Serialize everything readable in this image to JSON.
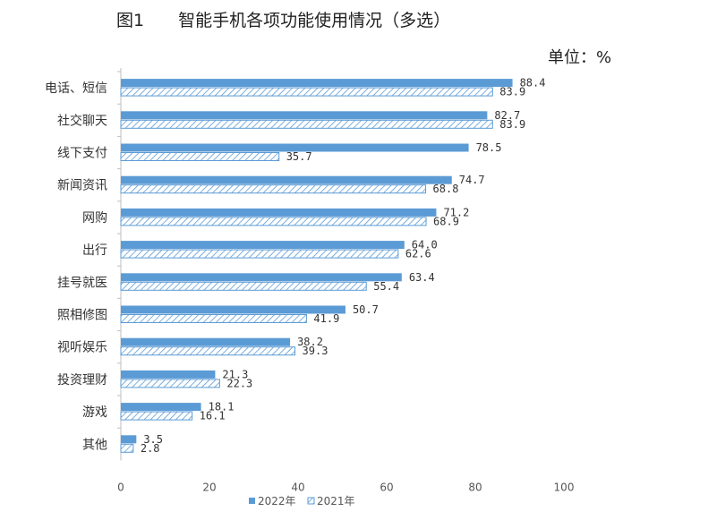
{
  "header": {
    "title": "图1　　智能手机各项功能使用情况（多选）",
    "unit": "单位：%"
  },
  "chart_data": {
    "type": "bar",
    "orientation": "horizontal",
    "title": "图1　　智能手机各项功能使用情况（多选）",
    "unit": "单位：%",
    "categories": [
      "电话、短信",
      "社交聊天",
      "线下支付",
      "新闻资讯",
      "网购",
      "出行",
      "挂号就医",
      "照相修图",
      "视听娱乐",
      "投资理财",
      "游戏",
      "其他"
    ],
    "series": [
      {
        "name": "2022年",
        "color": "#5b9bd5",
        "pattern": "solid",
        "values": [
          88.4,
          82.7,
          78.5,
          74.7,
          71.2,
          64.0,
          63.4,
          50.7,
          38.2,
          21.3,
          18.1,
          3.5
        ]
      },
      {
        "name": "2021年",
        "color": "#5b9bd5",
        "pattern": "hatched",
        "values": [
          83.9,
          83.9,
          35.7,
          68.8,
          68.9,
          62.6,
          55.4,
          41.9,
          39.3,
          22.3,
          16.1,
          2.8
        ]
      }
    ],
    "xlim": [
      0,
      100
    ],
    "xticks": [
      0,
      20,
      40,
      60,
      80,
      100
    ],
    "legend_position": "bottom",
    "grid": false
  }
}
